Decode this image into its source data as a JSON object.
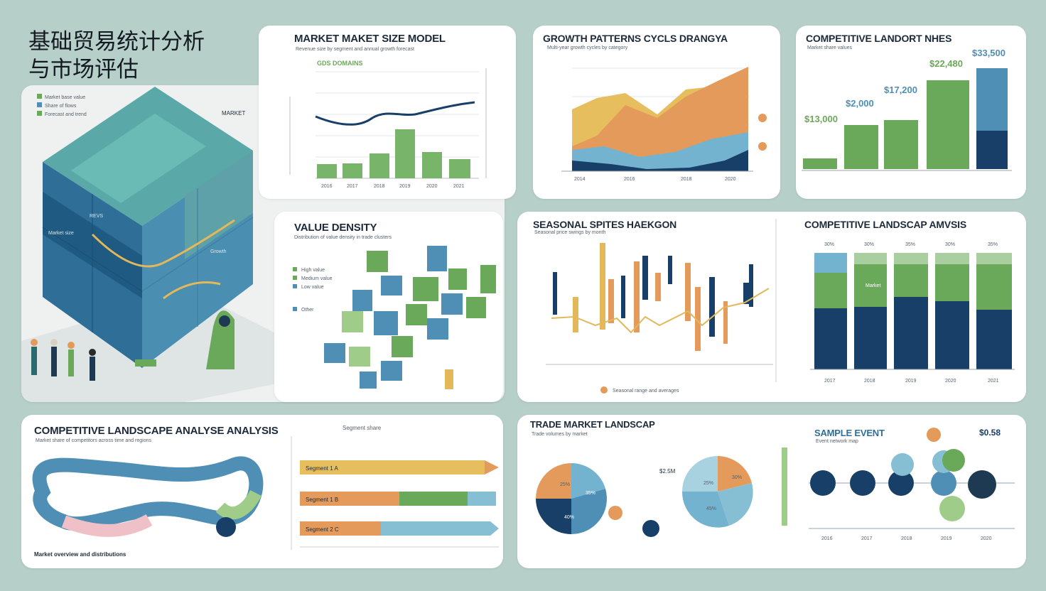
{
  "main_title_line1": "基础贸易统计分析",
  "main_title_line2": "与市场评估",
  "colors": {
    "navy": "#173f67",
    "blue": "#4f8fb6",
    "lightblue": "#86bfd4",
    "green": "#6aa85a",
    "lightgreen": "#9fcc88",
    "orange": "#e39a5b",
    "gold": "#e2b85a",
    "teal": "#7fc7c2"
  },
  "cube_panel": {
    "label_top": "MARKET",
    "label_mid": "REVS",
    "label_left": "Market size",
    "label_right": "Growth",
    "legend": [
      "Market base value",
      "Share of flows",
      "Forecast and trend"
    ]
  },
  "market_size": {
    "title": "MARKET MAKET SIZE MODEL",
    "subtitle": "Revenue size by segment and annual growth forecast",
    "series_label": "GDS DOMAINS",
    "x_labels": [
      "2016",
      "2017",
      "2018",
      "2019",
      "2020",
      "2021"
    ]
  },
  "growth": {
    "title": "GROWTH PATTERNS CYCLS DRANGYA",
    "subtitle": "Multi-year growth cycles by category",
    "x_labels": [
      "2014",
      "2016",
      "2018",
      "2020"
    ]
  },
  "competitive_top": {
    "title": "COMPETITIVE LANDORT NHES",
    "subtitle": "Market share values",
    "values": [
      "$13,000",
      "$2,000",
      "$17,200",
      "$22,480",
      "$33,500"
    ]
  },
  "value_density": {
    "title": "VALUE DENSITY",
    "subtitle": "Distribution of value density in trade clusters",
    "legend": [
      "High value",
      "Medium value",
      "Low value",
      "Other"
    ]
  },
  "seasonal": {
    "title": "SEASONAL SPITES HAEKGON",
    "subtitle": "Seasonal price swings by month",
    "legend_text": "Seasonal range and averages"
  },
  "competitive_mid": {
    "title": "COMPETITIVE LANDSCAP AMVSIS",
    "bar_values": [
      "30%",
      "30%",
      "35%",
      "30%",
      "35%"
    ],
    "segment_label": "Market",
    "x_labels": [
      "2017",
      "2018",
      "2019",
      "2020",
      "2021"
    ]
  },
  "competitive_bottom": {
    "title": "COMPETITIVE LANDSCAPE ANALYSE ANALYSIS",
    "subtitle": "Market share of competitors across time and regions",
    "legend_label": "Segment share",
    "bars": [
      "Segment 1 A",
      "Segment 1 B",
      "Segment 2 C"
    ],
    "footer": "Market overview and distributions"
  },
  "trade_market": {
    "title": "TRADE MARKET LANDSCAP",
    "subtitle": "Trade volumes by market",
    "pie1_labels": [
      "25%",
      "35%",
      "40%"
    ],
    "pie2_labels": [
      "25%",
      "30%",
      "45%"
    ],
    "value_label": "$2.5M"
  },
  "sample_event": {
    "title": "SAMPLE EVENT",
    "value": "$0.58",
    "subtitle": "Event network map",
    "x_labels": [
      "2016",
      "2017",
      "2018",
      "2019",
      "2020"
    ]
  }
}
